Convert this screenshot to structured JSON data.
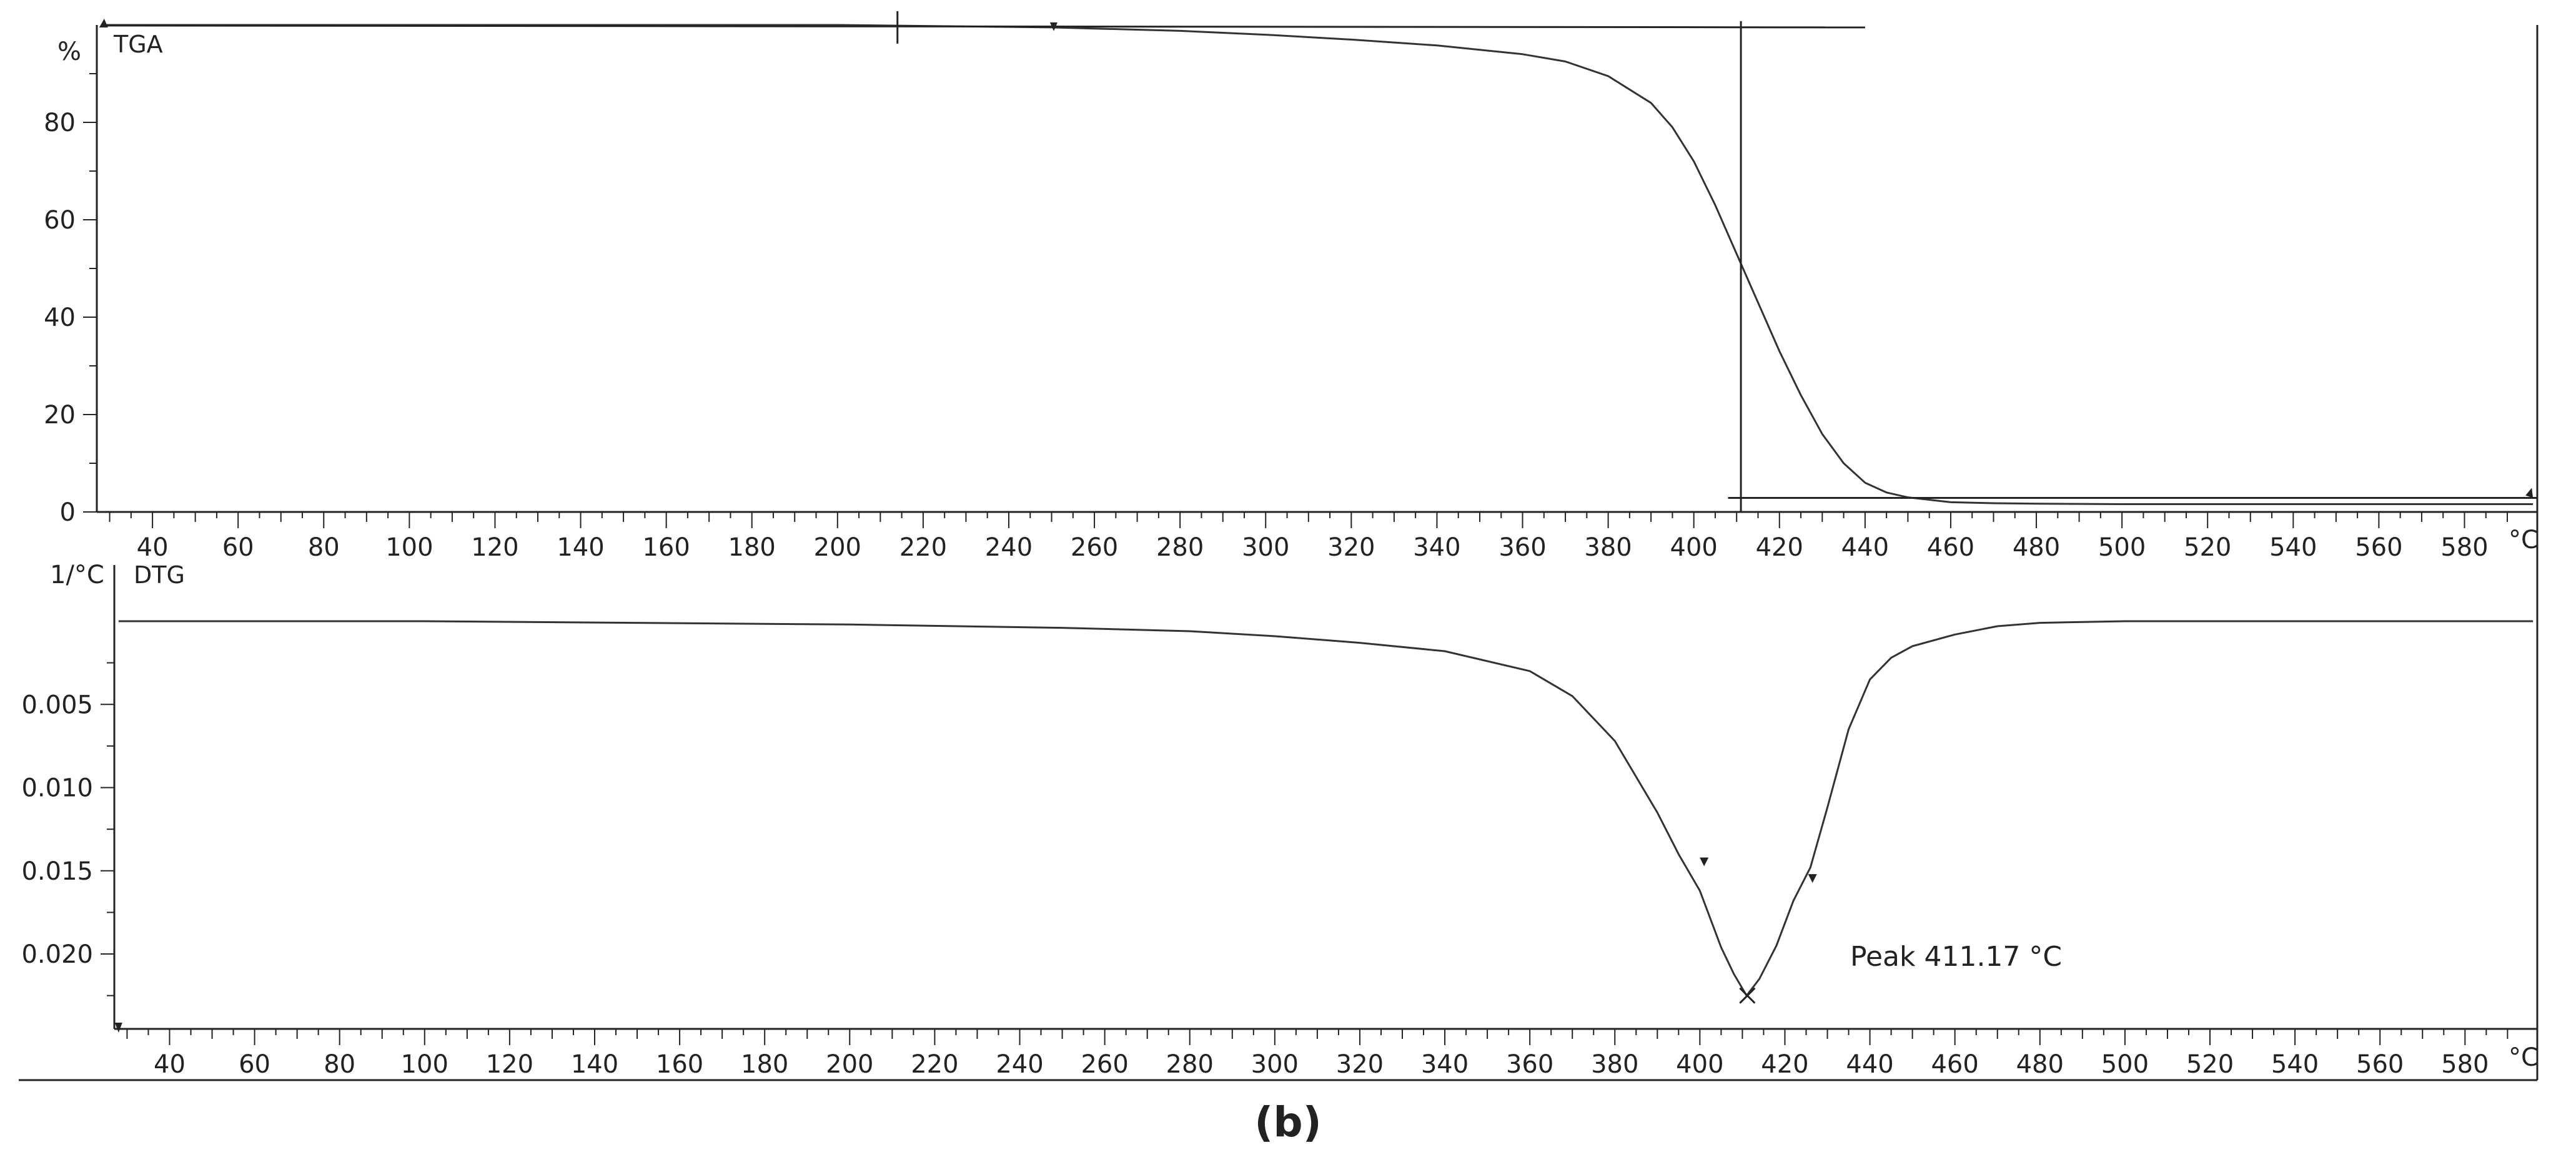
{
  "caption": "(b)",
  "colors": {
    "axis": "#222222",
    "curve": "#333333",
    "background": "#ffffff"
  },
  "chart_data": [
    {
      "type": "line",
      "title": "TGA",
      "ylabel": "%",
      "xlabel": "°C",
      "xlim": [
        27,
        597
      ],
      "ylim": [
        0,
        100
      ],
      "x_ticks": [
        40,
        60,
        80,
        100,
        120,
        140,
        160,
        180,
        200,
        220,
        240,
        260,
        280,
        300,
        320,
        340,
        360,
        380,
        400,
        420,
        440,
        460,
        480,
        500,
        520,
        540,
        560,
        580
      ],
      "y_ticks": [
        0,
        20,
        40,
        60,
        80
      ],
      "grid": false,
      "series": [
        {
          "x": [
            28,
            60,
            100,
            150,
            200,
            250,
            280,
            300,
            320,
            340,
            360,
            370,
            380,
            390,
            395,
            400,
            405,
            410,
            415,
            420,
            425,
            430,
            435,
            440,
            445,
            450,
            460,
            470,
            480,
            500,
            550,
            596
          ],
          "y": [
            100,
            100,
            100,
            100,
            100,
            99.5,
            98.8,
            98,
            97,
            95.8,
            94,
            92.5,
            89.5,
            84,
            79,
            72,
            63,
            53,
            43,
            33,
            24,
            16,
            10,
            6,
            4,
            3,
            2,
            1.8,
            1.7,
            1.6,
            1.6,
            1.6
          ]
        }
      ],
      "reference_lines": {
        "upper_step_y": 99.5,
        "vertical_marker_x": 411,
        "lower_step_y": 1.6
      }
    },
    {
      "type": "line",
      "title": "DTG",
      "ylabel": "1/°C",
      "xlabel": "°C",
      "xlim": [
        27,
        597
      ],
      "ylim": [
        0.0245,
        -0.0015
      ],
      "y_ticks": [
        0.005,
        0.01,
        0.015,
        0.02
      ],
      "y_tick_labels": [
        "0.005",
        "0.010",
        "0.015",
        "0.020"
      ],
      "x_ticks": [
        40,
        60,
        80,
        100,
        120,
        140,
        160,
        180,
        200,
        220,
        240,
        260,
        280,
        300,
        320,
        340,
        360,
        380,
        400,
        420,
        440,
        460,
        480,
        500,
        520,
        540,
        560,
        580
      ],
      "grid": false,
      "series": [
        {
          "x": [
            28,
            60,
            100,
            150,
            200,
            250,
            280,
            300,
            320,
            340,
            360,
            370,
            380,
            390,
            395,
            400,
            405,
            408,
            411,
            414,
            418,
            422,
            426,
            430,
            435,
            440,
            445,
            450,
            460,
            470,
            480,
            500,
            550,
            596
          ],
          "y": [
            0,
            0,
            0,
            0.0001,
            0.0002,
            0.0004,
            0.0006,
            0.0009,
            0.0013,
            0.0018,
            0.003,
            0.0045,
            0.0072,
            0.0115,
            0.014,
            0.0162,
            0.0196,
            0.0212,
            0.0225,
            0.0215,
            0.0195,
            0.0168,
            0.0148,
            0.0112,
            0.0065,
            0.0035,
            0.0022,
            0.0015,
            0.0008,
            0.0003,
            0.0001,
            0,
            0,
            0
          ]
        }
      ],
      "annotations": [
        {
          "label": "Peak 411.17 °C",
          "x": 411.17,
          "y": 0.0225
        }
      ]
    }
  ]
}
